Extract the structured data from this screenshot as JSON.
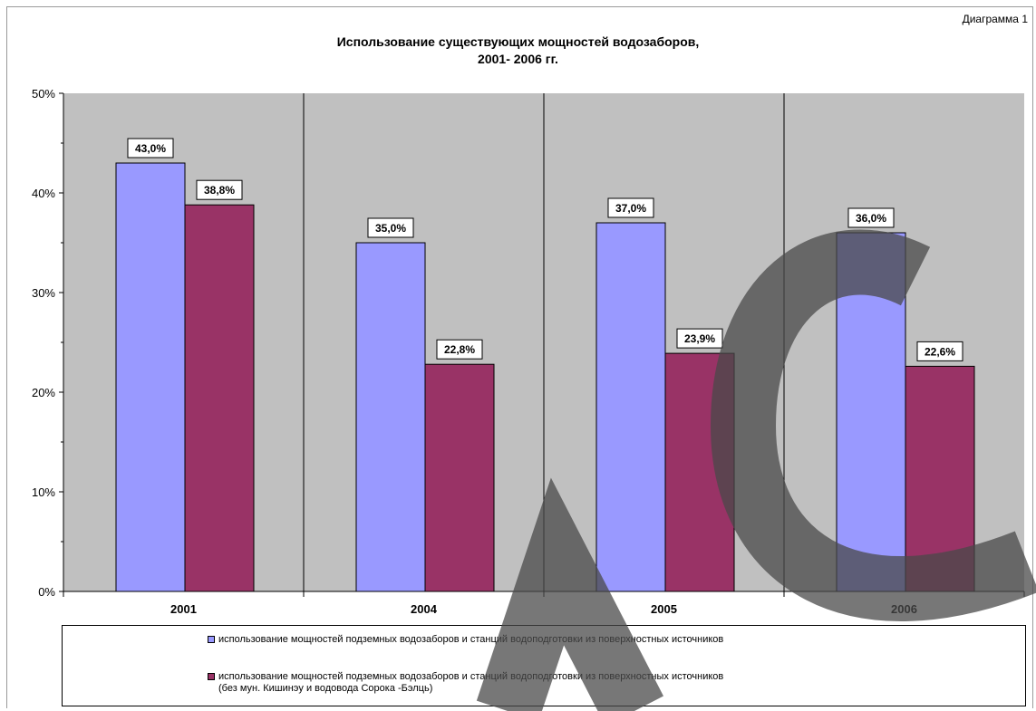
{
  "header": {
    "corner_label": "Диаграмма 1",
    "title_line1": "Использование существующих мощностей водозаборов,",
    "title_line2": "2001- 2006 гг."
  },
  "colors": {
    "plot_background": "#c0c0c0",
    "series1": "#9999ff",
    "series2": "#993366",
    "watermark": "#4a4a4a"
  },
  "chart_data": {
    "type": "bar",
    "title": "Использование существующих мощностей водозаборов, 2001- 2006 гг.",
    "categories": [
      "2001",
      "2004",
      "2005",
      "2006"
    ],
    "series": [
      {
        "name": "использование мощностей подземных водозаборов и станций водоподготовки из поверхностных источников",
        "values": [
          43.0,
          35.0,
          37.0,
          36.0
        ],
        "labels": [
          "43,0%",
          "35,0%",
          "37,0%",
          "36,0%"
        ]
      },
      {
        "name": "использование мощностей подземных водозаборов и станций водоподготовки из поверхностных источников (без мун. Кишинэу и водовода Сорока -Бэлць)",
        "values": [
          38.8,
          22.8,
          23.9,
          22.6
        ],
        "labels": [
          "38,8%",
          "22,8%",
          "23,9%",
          "22,6%"
        ]
      }
    ],
    "ylim": [
      0,
      50
    ],
    "yticks": [
      "0%",
      "10%",
      "20%",
      "30%",
      "40%",
      "50%"
    ],
    "grid": "vertical separators between categories",
    "legend_position": "bottom"
  },
  "legend": {
    "item1_line1": "использование мощностей подземных водозаборов и станций водоподготовки из поверхностных источников",
    "item2_line1": "использование мощностей подземных водозаборов и станций водоподготовки из поверхностных источников",
    "item2_line2": "(без мун. Кишинэу и водовода Сорока -Бэлць)"
  }
}
